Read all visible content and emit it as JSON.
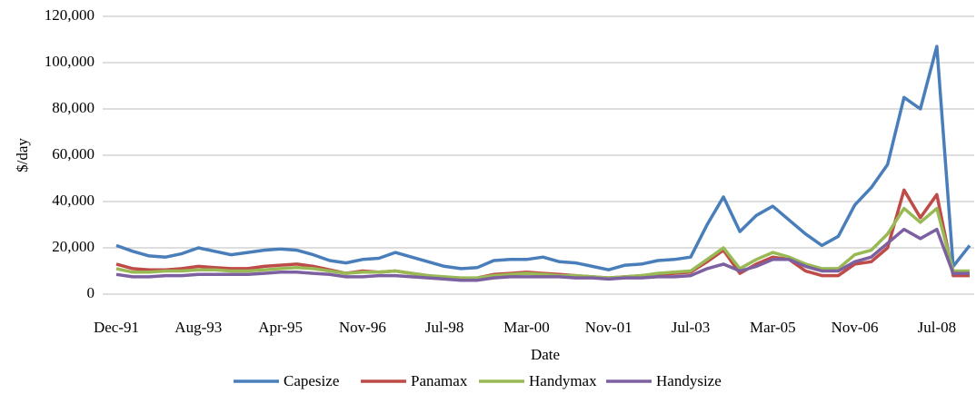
{
  "chart_data": {
    "type": "line",
    "x_label": "Date",
    "y_label": "$/day",
    "categories": [
      "Dec-91",
      null,
      null,
      null,
      null,
      "Aug-93",
      null,
      null,
      null,
      null,
      "Apr-95",
      null,
      null,
      null,
      null,
      "Nov-96",
      null,
      null,
      null,
      null,
      "Jul-98",
      null,
      null,
      null,
      null,
      "Mar-00",
      null,
      null,
      null,
      null,
      "Nov-01",
      null,
      null,
      null,
      null,
      "Jul-03",
      null,
      null,
      null,
      null,
      "Mar-05",
      null,
      null,
      null,
      null,
      "Nov-06",
      null,
      null,
      null,
      null,
      "Jul-08",
      null,
      null
    ],
    "series": [
      {
        "name": "Capesize",
        "color": "#4a7ebb",
        "values": [
          21000,
          18500,
          16500,
          16000,
          17500,
          20000,
          18500,
          17000,
          18000,
          19000,
          19500,
          19000,
          17000,
          14500,
          13500,
          15000,
          15500,
          18000,
          16000,
          14000,
          12000,
          11000,
          11500,
          14500,
          15000,
          15000,
          16000,
          14000,
          13500,
          12000,
          10500,
          12500,
          13000,
          14500,
          15000,
          16000,
          30000,
          42000,
          27000,
          34000,
          38000,
          32000,
          26000,
          21000,
          25000,
          38500,
          46000,
          56000,
          85000,
          80000,
          107000,
          12000,
          21000
        ]
      },
      {
        "name": "Panamax",
        "color": "#be4b48",
        "values": [
          13000,
          11000,
          10500,
          10500,
          11000,
          12000,
          11500,
          11000,
          11000,
          12000,
          12500,
          13000,
          12000,
          10500,
          9000,
          10000,
          9500,
          10000,
          9000,
          8000,
          7000,
          6500,
          7000,
          8500,
          9000,
          9500,
          9000,
          8500,
          8000,
          7500,
          7000,
          7500,
          8000,
          8500,
          9000,
          9500,
          14000,
          19000,
          9000,
          13000,
          16000,
          15000,
          10000,
          8000,
          8000,
          13000,
          14000,
          20000,
          45000,
          33000,
          43000,
          8000,
          8000
        ]
      },
      {
        "name": "Handymax",
        "color": "#98b954",
        "values": [
          11000,
          9500,
          9500,
          10000,
          10000,
          10500,
          10500,
          10000,
          10000,
          10500,
          11000,
          11500,
          11000,
          10000,
          9000,
          9500,
          9500,
          10000,
          9000,
          8000,
          7500,
          7000,
          7000,
          8000,
          8500,
          9000,
          8500,
          8000,
          8000,
          7500,
          7000,
          7500,
          8000,
          9000,
          9500,
          10000,
          15000,
          20000,
          11000,
          15000,
          18000,
          16000,
          13000,
          11000,
          11000,
          17000,
          19000,
          26000,
          37000,
          31000,
          37000,
          10000,
          10000
        ]
      },
      {
        "name": "Handysize",
        "color": "#7d60a0",
        "values": [
          8500,
          7500,
          7500,
          8000,
          8000,
          8500,
          8500,
          8500,
          8500,
          9000,
          9500,
          9500,
          9000,
          8500,
          7500,
          7500,
          8000,
          8000,
          7500,
          7000,
          6500,
          6000,
          6000,
          7000,
          7500,
          7500,
          7500,
          7500,
          7000,
          7000,
          6500,
          7000,
          7000,
          7500,
          7500,
          8000,
          11000,
          13000,
          10000,
          12000,
          15000,
          15000,
          12000,
          10000,
          10000,
          14000,
          16000,
          22000,
          28000,
          24000,
          28000,
          9000,
          9000
        ]
      }
    ],
    "ylim": [
      0,
      120000
    ],
    "yticks": [
      0,
      {
        "value": 20000,
        "label": "20,000"
      },
      {
        "value": 40000,
        "label": "40,000"
      },
      {
        "value": 60000,
        "label": "60,000"
      },
      {
        "value": 80000,
        "label": "80,000"
      },
      {
        "value": 100000,
        "label": "100,000"
      },
      {
        "value": 120000,
        "label": "120,000"
      }
    ],
    "grid": true,
    "legend": "bottom"
  }
}
